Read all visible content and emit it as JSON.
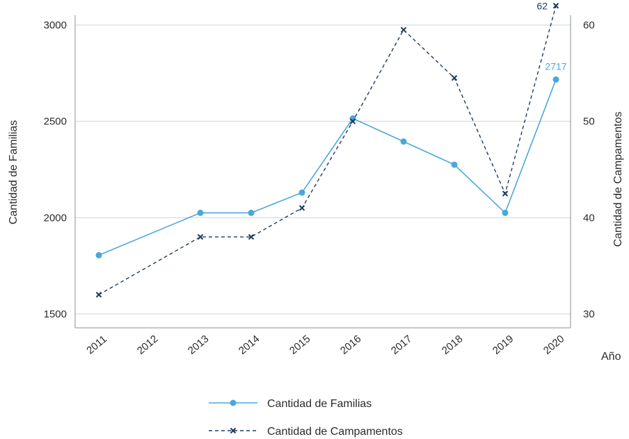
{
  "chart_data": {
    "type": "line",
    "categories": [
      "2011",
      "2012",
      "2013",
      "2014",
      "2015",
      "2016",
      "2017",
      "2018",
      "2019",
      "2020"
    ],
    "xlabel": "Año",
    "ylabel": "Cantidad de Familias",
    "ylabel_right": "Cantidad de Campamentos",
    "ylim": [
      1500,
      3000
    ],
    "ylim_right": [
      30,
      60
    ],
    "yticks": [
      "1500",
      "2000",
      "2500",
      "3000"
    ],
    "yticks_right": [
      "30",
      "40",
      "50",
      "60"
    ],
    "grid": true,
    "legend_position": "bottom",
    "series": [
      {
        "name": "Cantidad de Familias",
        "axis": "left",
        "color": "#4aa8d8",
        "style": "solid",
        "marker": "circle",
        "points": [
          {
            "x": "2011",
            "y": 1805
          },
          {
            "x": "2013",
            "y": 2025
          },
          {
            "x": "2014",
            "y": 2025
          },
          {
            "x": "2015",
            "y": 2130
          },
          {
            "x": "2016",
            "y": 2515
          },
          {
            "x": "2017",
            "y": 2395
          },
          {
            "x": "2018",
            "y": 2275
          },
          {
            "x": "2019",
            "y": 2025
          },
          {
            "x": "2020",
            "y": 2717
          }
        ]
      },
      {
        "name": "Cantidad de Campamentos",
        "axis": "right",
        "color": "#1f3a5f",
        "style": "dashed",
        "marker": "x",
        "points": [
          {
            "x": "2011",
            "y": 32
          },
          {
            "x": "2013",
            "y": 38
          },
          {
            "x": "2014",
            "y": 38
          },
          {
            "x": "2015",
            "y": 41
          },
          {
            "x": "2016",
            "y": 50
          },
          {
            "x": "2017",
            "y": 59.5
          },
          {
            "x": "2018",
            "y": 54.5
          },
          {
            "x": "2019",
            "y": 42.5
          },
          {
            "x": "2020",
            "y": 62
          }
        ]
      }
    ],
    "annotations": [
      {
        "series": "Cantidad de Familias",
        "x": "2020",
        "text": "2717"
      },
      {
        "series": "Cantidad de Campamentos",
        "x": "2020",
        "text": "62"
      }
    ]
  }
}
